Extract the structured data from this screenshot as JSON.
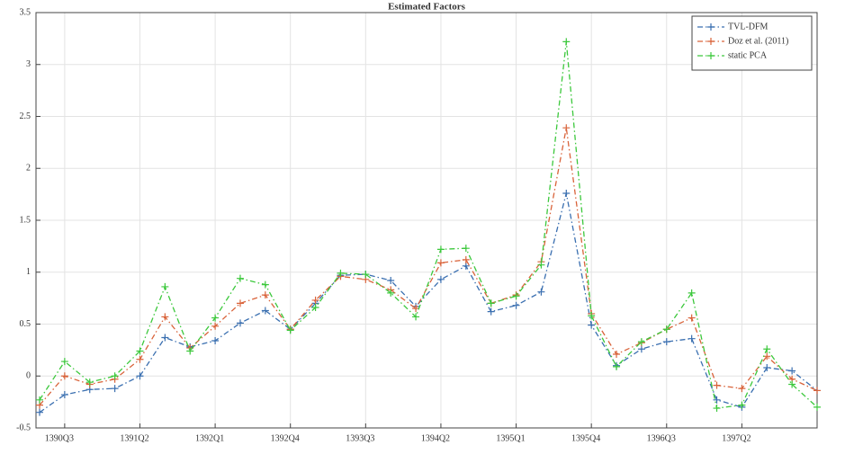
{
  "chart_data": {
    "type": "line",
    "title": "Estimated Factors",
    "categories": [
      null,
      "1390Q3",
      null,
      null,
      "1391Q2",
      null,
      null,
      "1392Q1",
      null,
      null,
      "1392Q4",
      null,
      null,
      "1393Q3",
      null,
      null,
      "1394Q2",
      null,
      null,
      "1395Q1",
      null,
      null,
      "1395Q4",
      null,
      null,
      "1396Q3",
      null,
      null,
      "1397Q2",
      null,
      null,
      null
    ],
    "series": [
      {
        "name": "TVL-DFM",
        "color": "#3a6fb0",
        "values": [
          -0.35,
          -0.18,
          -0.13,
          -0.12,
          0.0,
          0.37,
          0.28,
          0.34,
          0.51,
          0.63,
          0.45,
          0.7,
          0.97,
          0.98,
          0.92,
          0.67,
          0.93,
          1.06,
          0.62,
          0.68,
          0.81,
          1.76,
          0.49,
          0.1,
          0.26,
          0.33,
          0.36,
          -0.23,
          -0.3,
          0.08,
          0.05,
          -0.14
        ]
      },
      {
        "name": "Doz et al. (2011)",
        "color": "#d9633a",
        "values": [
          -0.28,
          0.0,
          -0.08,
          -0.03,
          0.16,
          0.57,
          0.27,
          0.48,
          0.7,
          0.78,
          0.45,
          0.73,
          0.96,
          0.93,
          0.83,
          0.65,
          1.09,
          1.12,
          0.7,
          0.78,
          1.1,
          2.39,
          0.6,
          0.21,
          0.32,
          0.45,
          0.56,
          -0.09,
          -0.12,
          0.19,
          -0.03,
          -0.14
        ]
      },
      {
        "name": "static PCA",
        "color": "#3cc83c",
        "values": [
          -0.23,
          0.14,
          -0.06,
          0.0,
          0.24,
          0.86,
          0.24,
          0.56,
          0.94,
          0.88,
          0.44,
          0.66,
          0.99,
          0.98,
          0.8,
          0.57,
          1.22,
          1.23,
          0.7,
          0.77,
          1.07,
          3.22,
          0.58,
          0.09,
          0.33,
          0.45,
          0.8,
          -0.31,
          -0.28,
          0.26,
          -0.08,
          -0.3
        ]
      }
    ],
    "ylim": [
      -0.5,
      3.5
    ],
    "yticks": [
      -0.5,
      0,
      0.5,
      1,
      1.5,
      2,
      2.5,
      3,
      3.5
    ],
    "grid": true,
    "legend": "top-right"
  }
}
